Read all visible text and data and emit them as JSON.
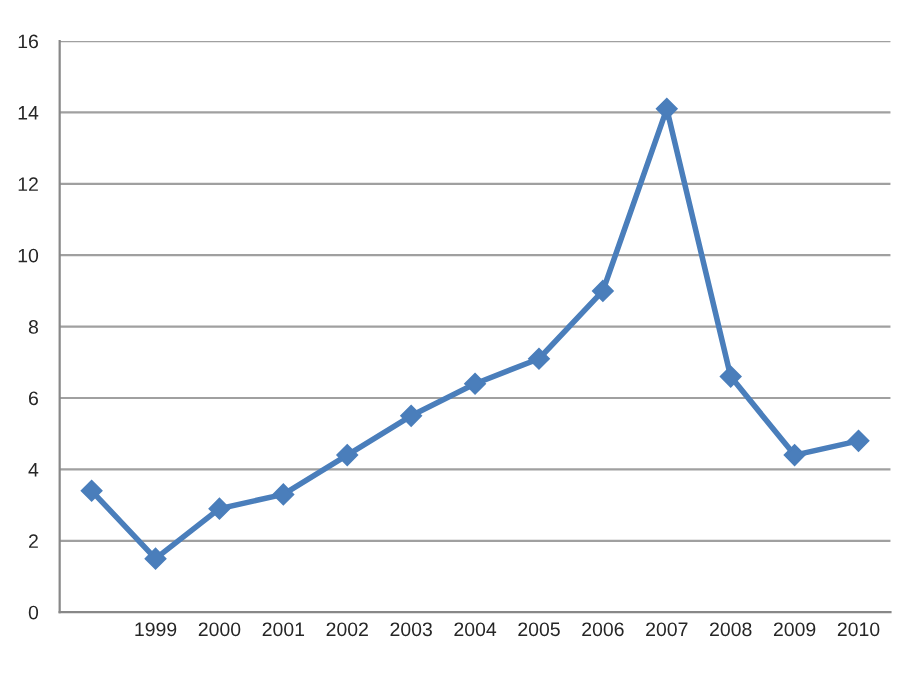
{
  "chart_data": {
    "type": "line",
    "categories": [
      null,
      "1999",
      "2000",
      "2001",
      "2002",
      "2003",
      "2004",
      "2005",
      "2006",
      "2007",
      "2008",
      "2009",
      "2010"
    ],
    "series": [
      {
        "color": "#4a7ebb",
        "values": [
          3.4,
          1.5,
          2.9,
          3.3,
          4.4,
          5.5,
          6.4,
          7.1,
          9.0,
          14.1,
          6.6,
          4.4,
          4.8
        ]
      }
    ],
    "ylim": [
      0,
      16
    ],
    "yticks": [
      0,
      2,
      4,
      6,
      8,
      10,
      12,
      14,
      16
    ],
    "grid": "y",
    "marker": "diamond",
    "line_style": "solid",
    "legend": false
  }
}
